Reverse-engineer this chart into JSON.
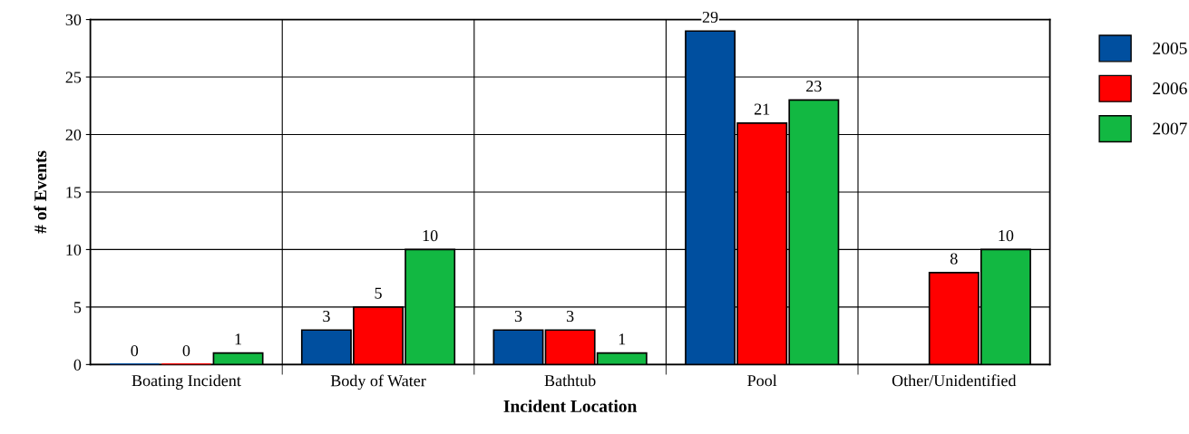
{
  "chart_data": {
    "type": "bar",
    "xlabel": "Incident Location",
    "ylabel": "# of Events",
    "categories": [
      "Boating Incident",
      "Body of Water",
      "Bathtub",
      "Pool",
      "Other/Unidentified"
    ],
    "series": [
      {
        "name": "2005",
        "color": "#004f9f",
        "values": [
          0,
          3,
          3,
          29,
          null
        ],
        "value_labels": [
          "0",
          "3",
          "3",
          "29",
          null
        ]
      },
      {
        "name": "2006",
        "color": "#ff0000",
        "values": [
          0,
          5,
          3,
          21,
          8
        ],
        "value_labels": [
          "0",
          "5",
          "3",
          "21",
          "8"
        ]
      },
      {
        "name": "2007",
        "color": "#12b842",
        "values": [
          1,
          10,
          1,
          23,
          10
        ],
        "value_labels": [
          "1",
          "10",
          "1",
          "23",
          "10"
        ]
      }
    ],
    "ylim": [
      0,
      30
    ],
    "yticks": [
      0,
      5,
      10,
      15,
      20,
      25,
      30
    ],
    "grid": true,
    "legend": "top right"
  }
}
